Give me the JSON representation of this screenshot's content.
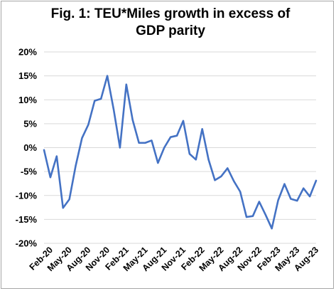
{
  "chart_data": {
    "type": "line",
    "title_line1": "Fig. 1: TEU*Miles growth in excess of",
    "title_line2": "GDP parity",
    "xlabel": "",
    "ylabel": "",
    "ylim": [
      -20,
      20
    ],
    "y_ticks": [
      "20%",
      "15%",
      "10%",
      "5%",
      "0%",
      "-5%",
      "-10%",
      "-15%",
      "-20%"
    ],
    "y_tick_values": [
      20,
      15,
      10,
      5,
      0,
      -5,
      -10,
      -15,
      -20
    ],
    "x_tick_labels": [
      "Feb-20",
      "May-20",
      "Aug-20",
      "Nov-20",
      "Feb-21",
      "May-21",
      "Aug-21",
      "Nov-21",
      "Feb-22",
      "May-22",
      "Aug-22",
      "Nov-22",
      "Feb-23",
      "May-23",
      "Aug-23"
    ],
    "grid": true,
    "legend": "none",
    "line_color": "#4472c4",
    "grid_color": "#d9d9d9",
    "x": [
      "Jan-20",
      "Feb-20",
      "Mar-20",
      "Apr-20",
      "May-20",
      "Jun-20",
      "Jul-20",
      "Aug-20",
      "Sep-20",
      "Oct-20",
      "Nov-20",
      "Dec-20",
      "Jan-21",
      "Feb-21",
      "Mar-21",
      "Apr-21",
      "May-21",
      "Jun-21",
      "Jul-21",
      "Aug-21",
      "Sep-21",
      "Oct-21",
      "Nov-21",
      "Dec-21",
      "Jan-22",
      "Feb-22",
      "Mar-22",
      "Apr-22",
      "May-22",
      "Jun-22",
      "Jul-22",
      "Aug-22",
      "Sep-22",
      "Oct-22",
      "Nov-22",
      "Dec-22",
      "Jan-23",
      "Feb-23",
      "Mar-23",
      "Apr-23",
      "May-23",
      "Jun-23",
      "Jul-23",
      "Aug-23"
    ],
    "series": [
      {
        "values": [
          -0.5,
          -6.2,
          -1.8,
          -12.6,
          -10.8,
          -3.8,
          2.0,
          4.8,
          9.8,
          10.2,
          15.0,
          8.0,
          0.0,
          13.2,
          5.8,
          1.0,
          1.0,
          1.5,
          -3.2,
          0.0,
          2.2,
          2.5,
          5.6,
          -1.3,
          -2.5,
          3.9,
          -2.5,
          -6.8,
          -6.0,
          -4.3,
          -7.0,
          -9.2,
          -14.5,
          -14.3,
          -11.3,
          -14.0,
          -16.9,
          -11.0,
          -7.6,
          -10.7,
          -11.1,
          -8.5,
          -10.2,
          -6.9
        ]
      }
    ]
  }
}
